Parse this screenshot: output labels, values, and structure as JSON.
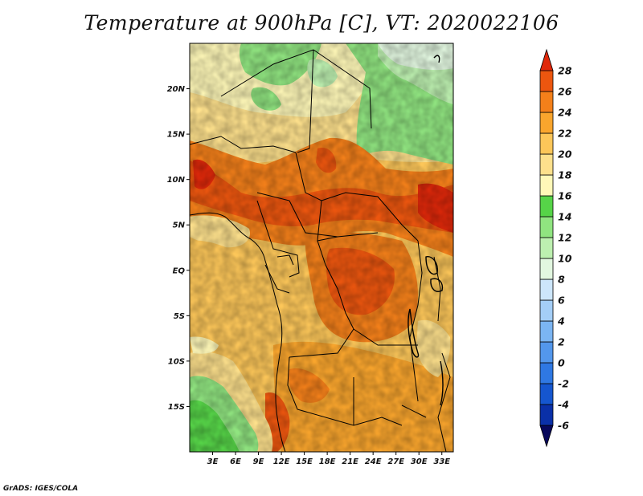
{
  "title": "Temperature at 900hPa [C], VT: 2020022106",
  "credit": "GrADS: IGES/COLA",
  "map": {
    "lon_range": [
      0,
      34.5
    ],
    "lat_range": [
      -20,
      25
    ],
    "lon_ticks": [
      {
        "value": 3,
        "label": "3E"
      },
      {
        "value": 6,
        "label": "6E"
      },
      {
        "value": 9,
        "label": "9E"
      },
      {
        "value": 12,
        "label": "12E"
      },
      {
        "value": 15,
        "label": "15E"
      },
      {
        "value": 18,
        "label": "18E"
      },
      {
        "value": 21,
        "label": "21E"
      },
      {
        "value": 24,
        "label": "24E"
      },
      {
        "value": 27,
        "label": "27E"
      },
      {
        "value": 30,
        "label": "30E"
      },
      {
        "value": 33,
        "label": "33E"
      }
    ],
    "lat_ticks": [
      {
        "value": 20,
        "label": "20N"
      },
      {
        "value": 15,
        "label": "15N"
      },
      {
        "value": 10,
        "label": "10N"
      },
      {
        "value": 5,
        "label": "5N"
      },
      {
        "value": 0,
        "label": "EQ"
      },
      {
        "value": -5,
        "label": "5S"
      },
      {
        "value": -10,
        "label": "10S"
      },
      {
        "value": -15,
        "label": "15S"
      }
    ]
  },
  "colorbar": {
    "levels": [
      "-6",
      "-4",
      "-2",
      "0",
      "2",
      "4",
      "6",
      "8",
      "10",
      "12",
      "14",
      "16",
      "18",
      "20",
      "22",
      "24",
      "26",
      "28"
    ],
    "colors": [
      "#08085c",
      "#0a30a8",
      "#1556cf",
      "#2f78e3",
      "#5397ec",
      "#7bb5f2",
      "#a4cef7",
      "#cde6fb",
      "#e2f7e0",
      "#bdf0b0",
      "#90e480",
      "#56d448",
      "#fff8b8",
      "#fde08c",
      "#fcc659",
      "#f9a52d",
      "#f4801a",
      "#ec560f",
      "#e0280a"
    ]
  }
}
